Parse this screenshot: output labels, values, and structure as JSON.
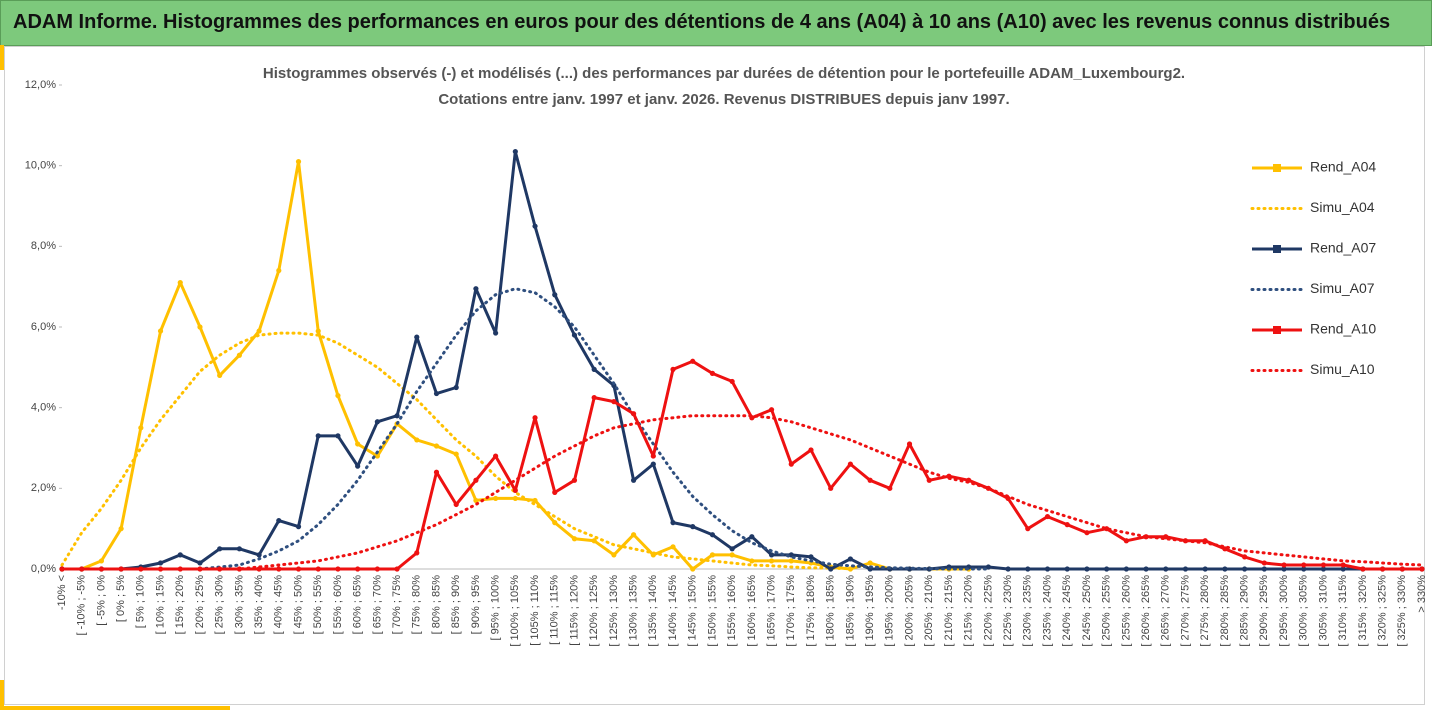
{
  "banner": "ADAM Informe. Histogrammes des performances en euros pour des détentions de 4 ans (A04) à 10 ans (A10) avec les revenus connus distribués",
  "chart_data": {
    "type": "line",
    "title": [
      "Histogrammes observés (-) et modélisés (...) des performances par durées de détention pour le portefeuille ADAM_Luxembourg2.",
      "Cotations entre janv. 1997 et janv. 2026. Revenus DISTRIBUES depuis janv 1997."
    ],
    "categories": [
      "-10% <",
      "[ -10% ; -5%",
      "[ -5% ; 0%",
      "[ 0% ; 5%",
      "[ 5% ; 10%",
      "[ 10% ; 15%",
      "[ 15% ; 20%",
      "[ 20% ; 25%",
      "[ 25% ; 30%",
      "[ 30% ; 35%",
      "[ 35% ; 40%",
      "[ 40% ; 45%",
      "[ 45% ; 50%",
      "[ 50% ; 55%",
      "[ 55% ; 60%",
      "[ 60% ; 65%",
      "[ 65% ; 70%",
      "[ 70% ; 75%",
      "[ 75% ; 80%",
      "[ 80% ; 85%",
      "[ 85% ; 90%",
      "[ 90% ; 95%",
      "[ 95% ; 100%",
      "[ 100% ; 105%",
      "[ 105% ; 110%",
      "[ 110% ; 115%",
      "[ 115% ; 120%",
      "[ 120% ; 125%",
      "[ 125% ; 130%",
      "[ 130% ; 135%",
      "[ 135% ; 140%",
      "[ 140% ; 145%",
      "[ 145% ; 150%",
      "[ 150% ; 155%",
      "[ 155% ; 160%",
      "[ 160% ; 165%",
      "[ 165% ; 170%",
      "[ 170% ; 175%",
      "[ 175% ; 180%",
      "[ 180% ; 185%",
      "[ 185% ; 190%",
      "[ 190% ; 195%",
      "[ 195% ; 200%",
      "[ 200% ; 205%",
      "[ 205% ; 210%",
      "[ 210% ; 215%",
      "[ 215% ; 220%",
      "[ 220% ; 225%",
      "[ 225% ; 230%",
      "[ 230% ; 235%",
      "[ 235% ; 240%",
      "[ 240% ; 245%",
      "[ 245% ; 250%",
      "[ 250% ; 255%",
      "[ 255% ; 260%",
      "[ 260% ; 265%",
      "[ 265% ; 270%",
      "[ 270% ; 275%",
      "[ 275% ; 280%",
      "[ 280% ; 285%",
      "[ 285% ; 290%",
      "[ 290% ; 295%",
      "[ 295% ; 300%",
      "[ 300% ; 305%",
      "[ 305% ; 310%",
      "[ 310% ; 315%",
      "[ 315% ; 320%",
      "[ 320% ; 325%",
      "[ 325% ; 330%",
      "> 330%"
    ],
    "series": [
      {
        "name": "Rend_A04",
        "color": "#ffc000",
        "style": "solid",
        "marker": true,
        "values": [
          0,
          0,
          0.2,
          1.0,
          3.5,
          5.9,
          7.1,
          6.0,
          4.8,
          5.3,
          5.9,
          7.4,
          10.1,
          5.9,
          4.3,
          3.1,
          2.8,
          3.6,
          3.2,
          3.05,
          2.85,
          1.7,
          1.75,
          1.75,
          1.7,
          1.15,
          0.75,
          0.7,
          0.35,
          0.85,
          0.35,
          0.55,
          0,
          0.35,
          0.35,
          0.2,
          0.2,
          0.2,
          0.15,
          0.05,
          0,
          0.15,
          0,
          0,
          0,
          0,
          0,
          null,
          null,
          null,
          null,
          null,
          null,
          null,
          null,
          null,
          null,
          null,
          null,
          null,
          null,
          null,
          null,
          null,
          null,
          null,
          null,
          null,
          null,
          null
        ]
      },
      {
        "name": "Simu_A04",
        "color": "#ffc000",
        "style": "dotted",
        "marker": false,
        "values": [
          0.1,
          0.9,
          1.5,
          2.2,
          3.0,
          3.7,
          4.3,
          4.9,
          5.3,
          5.6,
          5.8,
          5.85,
          5.85,
          5.8,
          5.6,
          5.3,
          5.0,
          4.6,
          4.2,
          3.7,
          3.2,
          2.8,
          2.3,
          1.9,
          1.6,
          1.3,
          1.0,
          0.8,
          0.6,
          0.5,
          0.4,
          0.3,
          0.25,
          0.2,
          0.15,
          0.1,
          0.08,
          0.05,
          0.03,
          0.02,
          0.01,
          null,
          null,
          null,
          null,
          null,
          null,
          null,
          null,
          null,
          null,
          null,
          null,
          null,
          null,
          null,
          null,
          null,
          null,
          null,
          null,
          null,
          null,
          null,
          null,
          null,
          null,
          null,
          null,
          null
        ]
      },
      {
        "name": "Rend_A07",
        "color": "#1f3864",
        "style": "solid",
        "marker": true,
        "values": [
          0,
          0,
          0,
          0,
          0.05,
          0.15,
          0.35,
          0.15,
          0.5,
          0.5,
          0.35,
          1.2,
          1.05,
          3.3,
          3.3,
          2.55,
          3.65,
          3.8,
          5.75,
          4.35,
          4.5,
          6.95,
          5.85,
          10.35,
          8.5,
          6.8,
          5.8,
          4.95,
          4.55,
          2.2,
          2.6,
          1.15,
          1.05,
          0.85,
          0.5,
          0.8,
          0.35,
          0.35,
          0.3,
          0,
          0.25,
          0,
          0,
          0,
          0,
          0.05,
          0.05,
          0.05,
          0,
          0,
          0,
          0,
          0,
          0,
          0,
          0,
          0,
          0,
          0,
          0,
          0,
          0,
          0,
          0,
          0,
          0,
          0,
          0,
          0,
          0
        ]
      },
      {
        "name": "Simu_A07",
        "color": "#2f4f7f",
        "style": "dotted",
        "marker": false,
        "values": [
          0,
          0,
          0,
          0,
          0,
          0,
          0,
          0,
          0.05,
          0.1,
          0.25,
          0.45,
          0.7,
          1.1,
          1.6,
          2.2,
          2.9,
          3.6,
          4.4,
          5.1,
          5.8,
          6.4,
          6.8,
          6.95,
          6.85,
          6.5,
          6.0,
          5.3,
          4.6,
          3.8,
          3.1,
          2.4,
          1.8,
          1.35,
          0.95,
          0.65,
          0.45,
          0.3,
          0.2,
          0.12,
          0.08,
          0.05,
          0.03,
          0.02,
          0.01,
          0,
          0,
          0,
          null,
          null,
          null,
          null,
          null,
          null,
          null,
          null,
          null,
          null,
          null,
          null,
          null,
          null,
          null,
          null,
          null,
          null,
          null,
          null,
          null,
          null
        ]
      },
      {
        "name": "Rend_A10",
        "color": "#ee1111",
        "style": "solid",
        "marker": true,
        "values": [
          0,
          0,
          0,
          0,
          0,
          0,
          0,
          0,
          0,
          0,
          0,
          0,
          0,
          0,
          0,
          0,
          0,
          0,
          0.4,
          2.4,
          1.6,
          2.2,
          2.8,
          1.95,
          3.75,
          1.9,
          2.2,
          4.25,
          4.15,
          3.85,
          2.8,
          4.95,
          5.15,
          4.85,
          4.65,
          3.75,
          3.95,
          2.6,
          2.95,
          2.0,
          2.6,
          2.2,
          2.0,
          3.1,
          2.2,
          2.3,
          2.2,
          2.0,
          1.75,
          1.0,
          1.3,
          1.1,
          0.9,
          1.0,
          0.7,
          0.8,
          0.8,
          0.7,
          0.7,
          0.5,
          0.3,
          0.15,
          0.1,
          0.1,
          0.1,
          0.1,
          0,
          0,
          0,
          0
        ]
      },
      {
        "name": "Simu_A10",
        "color": "#ee1111",
        "style": "dotted",
        "marker": false,
        "values": [
          0,
          0,
          0,
          0,
          0,
          0,
          0,
          0,
          0,
          0,
          0.05,
          0.1,
          0.15,
          0.2,
          0.3,
          0.4,
          0.55,
          0.7,
          0.9,
          1.1,
          1.35,
          1.6,
          1.9,
          2.2,
          2.5,
          2.8,
          3.05,
          3.3,
          3.5,
          3.6,
          3.7,
          3.75,
          3.8,
          3.8,
          3.8,
          3.8,
          3.75,
          3.65,
          3.5,
          3.35,
          3.2,
          3.0,
          2.8,
          2.6,
          2.4,
          2.25,
          2.15,
          2.0,
          1.8,
          1.6,
          1.45,
          1.3,
          1.15,
          1.0,
          0.9,
          0.8,
          0.75,
          0.7,
          0.65,
          0.55,
          0.45,
          0.4,
          0.35,
          0.3,
          0.25,
          0.2,
          0.18,
          0.15,
          0.12,
          0.1
        ]
      }
    ],
    "ylim": [
      0,
      12
    ],
    "yticks": [
      {
        "value": 0,
        "label": "0,0%"
      },
      {
        "value": 2,
        "label": "2,0%"
      },
      {
        "value": 4,
        "label": "4,0%"
      },
      {
        "value": 6,
        "label": "6,0%"
      },
      {
        "value": 8,
        "label": "8,0%"
      },
      {
        "value": 10,
        "label": "10,0%"
      },
      {
        "value": 12,
        "label": "12,0%"
      }
    ],
    "grid": false,
    "legend": "right"
  }
}
